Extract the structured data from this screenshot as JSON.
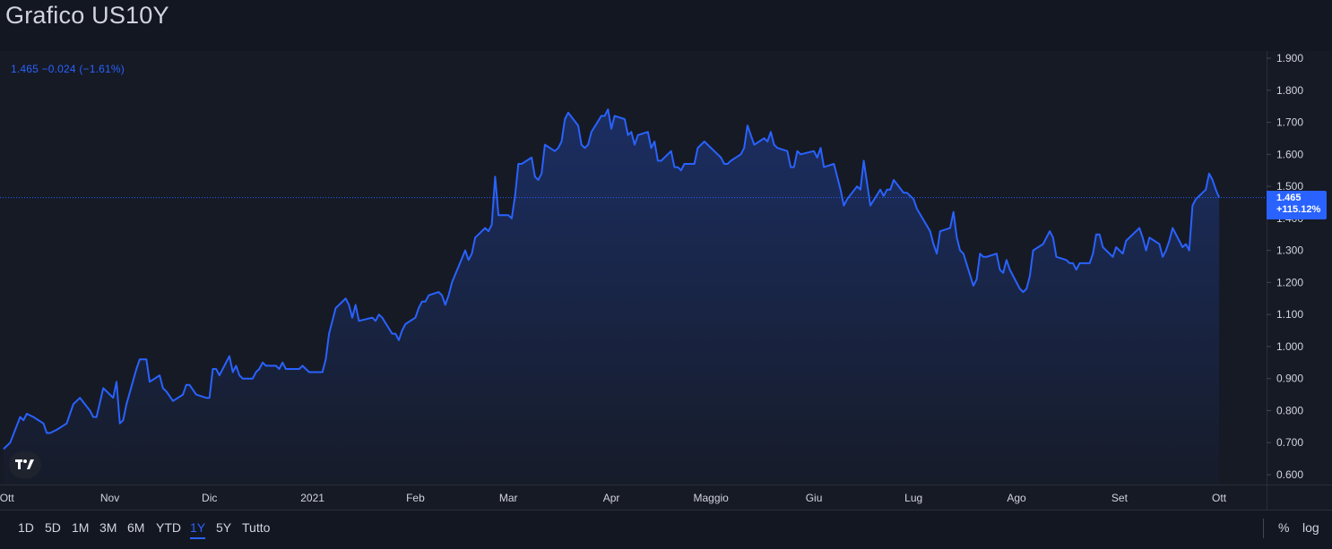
{
  "page": {
    "title": "Grafico US10Y"
  },
  "legend": {
    "quote": "1.465 −0.024 (−1.61%)"
  },
  "price_label": {
    "value": "1.465",
    "change": "+115.12%"
  },
  "toolbar": {
    "ranges": [
      "1D",
      "5D",
      "1M",
      "3M",
      "6M",
      "YTD",
      "1Y",
      "5Y",
      "Tutto"
    ],
    "active_range": "1Y",
    "percent_label": "%",
    "log_label": "log"
  },
  "colors": {
    "line": "#2962ff",
    "background": "#131722",
    "text": "#d1d4dc",
    "axis_border": "#2a2e39"
  },
  "chart_data": {
    "type": "area",
    "title": "Grafico US10Y",
    "ylim": [
      0.6,
      1.9
    ],
    "y_ticks": [
      "1.900",
      "1.800",
      "1.700",
      "1.600",
      "1.500",
      "1.400",
      "1.300",
      "1.200",
      "1.100",
      "1.000",
      "0.900",
      "0.800",
      "0.700",
      "0.600"
    ],
    "x_tick_labels": [
      "Ott",
      "Nov",
      "Dic",
      "2021",
      "Feb",
      "Mar",
      "Apr",
      "Maggio",
      "Giu",
      "Lug",
      "Ago",
      "Set",
      "Ott"
    ],
    "x_tick_dates": [
      "2020-10-01",
      "2020-11-01",
      "2020-12-01",
      "2021-01-01",
      "2021-02-01",
      "2021-03-01",
      "2021-04-01",
      "2021-05-01",
      "2021-06-01",
      "2021-07-01",
      "2021-08-01",
      "2021-09-01",
      "2021-10-01"
    ],
    "x_range": [
      "2020-09-30",
      "2021-10-08"
    ],
    "last_value": 1.465,
    "grid": false,
    "series": [
      {
        "points": [
          [
            "2020-09-30",
            0.68
          ],
          [
            "2020-10-02",
            0.7
          ],
          [
            "2020-10-05",
            0.78
          ],
          [
            "2020-10-06",
            0.77
          ],
          [
            "2020-10-07",
            0.79
          ],
          [
            "2020-10-09",
            0.78
          ],
          [
            "2020-10-12",
            0.76
          ],
          [
            "2020-10-13",
            0.73
          ],
          [
            "2020-10-14",
            0.73
          ],
          [
            "2020-10-16",
            0.74
          ],
          [
            "2020-10-19",
            0.76
          ],
          [
            "2020-10-20",
            0.79
          ],
          [
            "2020-10-21",
            0.82
          ],
          [
            "2020-10-23",
            0.84
          ],
          [
            "2020-10-26",
            0.8
          ],
          [
            "2020-10-27",
            0.78
          ],
          [
            "2020-10-28",
            0.78
          ],
          [
            "2020-10-30",
            0.87
          ],
          [
            "2020-11-02",
            0.84
          ],
          [
            "2020-11-03",
            0.89
          ],
          [
            "2020-11-04",
            0.76
          ],
          [
            "2020-11-05",
            0.77
          ],
          [
            "2020-11-06",
            0.82
          ],
          [
            "2020-11-09",
            0.93
          ],
          [
            "2020-11-10",
            0.96
          ],
          [
            "2020-11-12",
            0.96
          ],
          [
            "2020-11-13",
            0.89
          ],
          [
            "2020-11-16",
            0.91
          ],
          [
            "2020-11-17",
            0.87
          ],
          [
            "2020-11-18",
            0.86
          ],
          [
            "2020-11-20",
            0.83
          ],
          [
            "2020-11-23",
            0.85
          ],
          [
            "2020-11-24",
            0.88
          ],
          [
            "2020-11-25",
            0.88
          ],
          [
            "2020-11-27",
            0.85
          ],
          [
            "2020-11-30",
            0.84
          ],
          [
            "2020-12-01",
            0.84
          ],
          [
            "2020-12-02",
            0.93
          ],
          [
            "2020-12-03",
            0.93
          ],
          [
            "2020-12-04",
            0.91
          ],
          [
            "2020-12-07",
            0.97
          ],
          [
            "2020-12-08",
            0.92
          ],
          [
            "2020-12-09",
            0.94
          ],
          [
            "2020-12-10",
            0.91
          ],
          [
            "2020-12-11",
            0.9
          ],
          [
            "2020-12-14",
            0.9
          ],
          [
            "2020-12-15",
            0.92
          ],
          [
            "2020-12-16",
            0.93
          ],
          [
            "2020-12-17",
            0.95
          ],
          [
            "2020-12-18",
            0.94
          ],
          [
            "2020-12-21",
            0.94
          ],
          [
            "2020-12-22",
            0.93
          ],
          [
            "2020-12-23",
            0.95
          ],
          [
            "2020-12-24",
            0.93
          ],
          [
            "2020-12-28",
            0.93
          ],
          [
            "2020-12-29",
            0.94
          ],
          [
            "2020-12-30",
            0.93
          ],
          [
            "2020-12-31",
            0.92
          ],
          [
            "2021-01-04",
            0.92
          ],
          [
            "2021-01-05",
            0.96
          ],
          [
            "2021-01-06",
            1.04
          ],
          [
            "2021-01-07",
            1.08
          ],
          [
            "2021-01-08",
            1.12
          ],
          [
            "2021-01-11",
            1.15
          ],
          [
            "2021-01-12",
            1.13
          ],
          [
            "2021-01-13",
            1.09
          ],
          [
            "2021-01-14",
            1.13
          ],
          [
            "2021-01-15",
            1.08
          ],
          [
            "2021-01-19",
            1.09
          ],
          [
            "2021-01-20",
            1.08
          ],
          [
            "2021-01-21",
            1.1
          ],
          [
            "2021-01-22",
            1.09
          ],
          [
            "2021-01-25",
            1.04
          ],
          [
            "2021-01-26",
            1.04
          ],
          [
            "2021-01-27",
            1.02
          ],
          [
            "2021-01-28",
            1.05
          ],
          [
            "2021-01-29",
            1.07
          ],
          [
            "2021-02-01",
            1.09
          ],
          [
            "2021-02-02",
            1.12
          ],
          [
            "2021-02-03",
            1.14
          ],
          [
            "2021-02-04",
            1.14
          ],
          [
            "2021-02-05",
            1.16
          ],
          [
            "2021-02-08",
            1.17
          ],
          [
            "2021-02-09",
            1.16
          ],
          [
            "2021-02-10",
            1.13
          ],
          [
            "2021-02-11",
            1.16
          ],
          [
            "2021-02-12",
            1.2
          ],
          [
            "2021-02-16",
            1.3
          ],
          [
            "2021-02-17",
            1.27
          ],
          [
            "2021-02-18",
            1.29
          ],
          [
            "2021-02-19",
            1.34
          ],
          [
            "2021-02-22",
            1.37
          ],
          [
            "2021-02-23",
            1.36
          ],
          [
            "2021-02-24",
            1.38
          ],
          [
            "2021-02-25",
            1.53
          ],
          [
            "2021-02-26",
            1.41
          ],
          [
            "2021-03-01",
            1.41
          ],
          [
            "2021-03-02",
            1.4
          ],
          [
            "2021-03-03",
            1.47
          ],
          [
            "2021-03-04",
            1.57
          ],
          [
            "2021-03-05",
            1.57
          ],
          [
            "2021-03-08",
            1.59
          ],
          [
            "2021-03-09",
            1.53
          ],
          [
            "2021-03-10",
            1.52
          ],
          [
            "2021-03-11",
            1.54
          ],
          [
            "2021-03-12",
            1.63
          ],
          [
            "2021-03-15",
            1.61
          ],
          [
            "2021-03-16",
            1.62
          ],
          [
            "2021-03-17",
            1.64
          ],
          [
            "2021-03-18",
            1.71
          ],
          [
            "2021-03-19",
            1.73
          ],
          [
            "2021-03-22",
            1.69
          ],
          [
            "2021-03-23",
            1.63
          ],
          [
            "2021-03-24",
            1.62
          ],
          [
            "2021-03-25",
            1.63
          ],
          [
            "2021-03-26",
            1.67
          ],
          [
            "2021-03-29",
            1.72
          ],
          [
            "2021-03-30",
            1.72
          ],
          [
            "2021-03-31",
            1.74
          ],
          [
            "2021-04-01",
            1.68
          ],
          [
            "2021-04-02",
            1.72
          ],
          [
            "2021-04-05",
            1.71
          ],
          [
            "2021-04-06",
            1.66
          ],
          [
            "2021-04-07",
            1.67
          ],
          [
            "2021-04-08",
            1.63
          ],
          [
            "2021-04-09",
            1.66
          ],
          [
            "2021-04-12",
            1.67
          ],
          [
            "2021-04-13",
            1.62
          ],
          [
            "2021-04-14",
            1.64
          ],
          [
            "2021-04-15",
            1.58
          ],
          [
            "2021-04-16",
            1.58
          ],
          [
            "2021-04-19",
            1.61
          ],
          [
            "2021-04-20",
            1.56
          ],
          [
            "2021-04-21",
            1.56
          ],
          [
            "2021-04-22",
            1.55
          ],
          [
            "2021-04-23",
            1.57
          ],
          [
            "2021-04-26",
            1.57
          ],
          [
            "2021-04-27",
            1.62
          ],
          [
            "2021-04-28",
            1.63
          ],
          [
            "2021-04-29",
            1.64
          ],
          [
            "2021-04-30",
            1.63
          ],
          [
            "2021-05-03",
            1.6
          ],
          [
            "2021-05-04",
            1.59
          ],
          [
            "2021-05-05",
            1.57
          ],
          [
            "2021-05-06",
            1.57
          ],
          [
            "2021-05-07",
            1.58
          ],
          [
            "2021-05-10",
            1.6
          ],
          [
            "2021-05-11",
            1.62
          ],
          [
            "2021-05-12",
            1.69
          ],
          [
            "2021-05-13",
            1.66
          ],
          [
            "2021-05-14",
            1.63
          ],
          [
            "2021-05-17",
            1.65
          ],
          [
            "2021-05-18",
            1.64
          ],
          [
            "2021-05-19",
            1.67
          ],
          [
            "2021-05-20",
            1.63
          ],
          [
            "2021-05-21",
            1.62
          ],
          [
            "2021-05-24",
            1.61
          ],
          [
            "2021-05-25",
            1.56
          ],
          [
            "2021-05-26",
            1.56
          ],
          [
            "2021-05-27",
            1.61
          ],
          [
            "2021-05-28",
            1.6
          ],
          [
            "2021-06-01",
            1.61
          ],
          [
            "2021-06-02",
            1.59
          ],
          [
            "2021-06-03",
            1.62
          ],
          [
            "2021-06-04",
            1.56
          ],
          [
            "2021-06-07",
            1.57
          ],
          [
            "2021-06-08",
            1.53
          ],
          [
            "2021-06-09",
            1.49
          ],
          [
            "2021-06-10",
            1.44
          ],
          [
            "2021-06-11",
            1.46
          ],
          [
            "2021-06-14",
            1.5
          ],
          [
            "2021-06-15",
            1.49
          ],
          [
            "2021-06-16",
            1.58
          ],
          [
            "2021-06-17",
            1.51
          ],
          [
            "2021-06-18",
            1.44
          ],
          [
            "2021-06-21",
            1.49
          ],
          [
            "2021-06-22",
            1.47
          ],
          [
            "2021-06-23",
            1.49
          ],
          [
            "2021-06-24",
            1.49
          ],
          [
            "2021-06-25",
            1.52
          ],
          [
            "2021-06-28",
            1.48
          ],
          [
            "2021-06-29",
            1.48
          ],
          [
            "2021-06-30",
            1.47
          ],
          [
            "2021-07-01",
            1.46
          ],
          [
            "2021-07-02",
            1.43
          ],
          [
            "2021-07-06",
            1.36
          ],
          [
            "2021-07-07",
            1.32
          ],
          [
            "2021-07-08",
            1.29
          ],
          [
            "2021-07-09",
            1.36
          ],
          [
            "2021-07-12",
            1.37
          ],
          [
            "2021-07-13",
            1.42
          ],
          [
            "2021-07-14",
            1.34
          ],
          [
            "2021-07-15",
            1.3
          ],
          [
            "2021-07-16",
            1.29
          ],
          [
            "2021-07-19",
            1.19
          ],
          [
            "2021-07-20",
            1.21
          ],
          [
            "2021-07-21",
            1.29
          ],
          [
            "2021-07-22",
            1.28
          ],
          [
            "2021-07-23",
            1.28
          ],
          [
            "2021-07-26",
            1.29
          ],
          [
            "2021-07-27",
            1.24
          ],
          [
            "2021-07-28",
            1.23
          ],
          [
            "2021-07-29",
            1.27
          ],
          [
            "2021-07-30",
            1.24
          ],
          [
            "2021-08-02",
            1.18
          ],
          [
            "2021-08-03",
            1.17
          ],
          [
            "2021-08-04",
            1.18
          ],
          [
            "2021-08-05",
            1.22
          ],
          [
            "2021-08-06",
            1.3
          ],
          [
            "2021-08-09",
            1.32
          ],
          [
            "2021-08-10",
            1.34
          ],
          [
            "2021-08-11",
            1.36
          ],
          [
            "2021-08-12",
            1.34
          ],
          [
            "2021-08-13",
            1.28
          ],
          [
            "2021-08-16",
            1.27
          ],
          [
            "2021-08-17",
            1.26
          ],
          [
            "2021-08-18",
            1.26
          ],
          [
            "2021-08-19",
            1.24
          ],
          [
            "2021-08-20",
            1.26
          ],
          [
            "2021-08-23",
            1.26
          ],
          [
            "2021-08-24",
            1.29
          ],
          [
            "2021-08-25",
            1.35
          ],
          [
            "2021-08-26",
            1.35
          ],
          [
            "2021-08-27",
            1.31
          ],
          [
            "2021-08-30",
            1.28
          ],
          [
            "2021-08-31",
            1.31
          ],
          [
            "2021-09-01",
            1.3
          ],
          [
            "2021-09-02",
            1.29
          ],
          [
            "2021-09-03",
            1.33
          ],
          [
            "2021-09-07",
            1.37
          ],
          [
            "2021-09-08",
            1.34
          ],
          [
            "2021-09-09",
            1.3
          ],
          [
            "2021-09-10",
            1.34
          ],
          [
            "2021-09-13",
            1.32
          ],
          [
            "2021-09-14",
            1.28
          ],
          [
            "2021-09-15",
            1.3
          ],
          [
            "2021-09-16",
            1.33
          ],
          [
            "2021-09-17",
            1.37
          ],
          [
            "2021-09-20",
            1.31
          ],
          [
            "2021-09-21",
            1.32
          ],
          [
            "2021-09-22",
            1.3
          ],
          [
            "2021-09-23",
            1.44
          ],
          [
            "2021-09-24",
            1.46
          ],
          [
            "2021-09-27",
            1.49
          ],
          [
            "2021-09-28",
            1.54
          ],
          [
            "2021-09-29",
            1.52
          ],
          [
            "2021-09-30",
            1.49
          ],
          [
            "2021-10-01",
            1.465
          ]
        ]
      }
    ]
  }
}
